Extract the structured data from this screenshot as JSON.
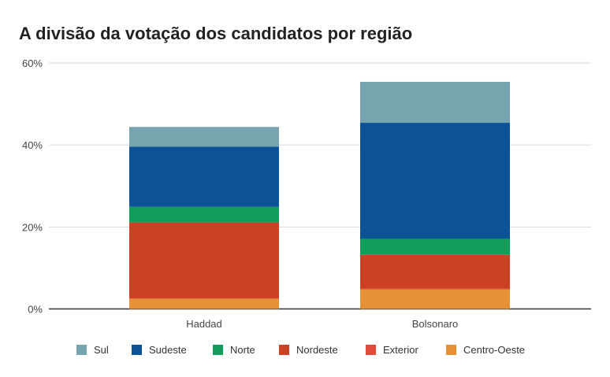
{
  "chart_data": {
    "type": "bar",
    "stacked": true,
    "title": "A divisão da votação dos candidatos por região",
    "xlabel": "",
    "ylabel": "",
    "categories": [
      "Haddad",
      "Bolsonaro"
    ],
    "series": [
      {
        "name": "Centro-Oeste",
        "color": "#e69138",
        "values": [
          2.5,
          4.8
        ]
      },
      {
        "name": "Exterior",
        "color": "#e04b3a",
        "values": [
          0.1,
          0.2
        ]
      },
      {
        "name": "Nordeste",
        "color": "#cc4125",
        "values": [
          18.5,
          8.2
        ]
      },
      {
        "name": "Norte",
        "color": "#109d59",
        "values": [
          3.8,
          3.9
        ]
      },
      {
        "name": "Sudeste",
        "color": "#0b5394",
        "values": [
          14.7,
          28.3
        ]
      },
      {
        "name": "Sul",
        "color": "#76a5af",
        "values": [
          4.8,
          10.0
        ]
      }
    ],
    "legend_order": [
      "Sul",
      "Sudeste",
      "Norte",
      "Nordeste",
      "Exterior",
      "Centro-Oeste"
    ],
    "ylim": [
      0,
      60
    ],
    "yticks": [
      "0%",
      "20%",
      "40%",
      "60%"
    ],
    "grid": true,
    "legend_position": "bottom"
  }
}
